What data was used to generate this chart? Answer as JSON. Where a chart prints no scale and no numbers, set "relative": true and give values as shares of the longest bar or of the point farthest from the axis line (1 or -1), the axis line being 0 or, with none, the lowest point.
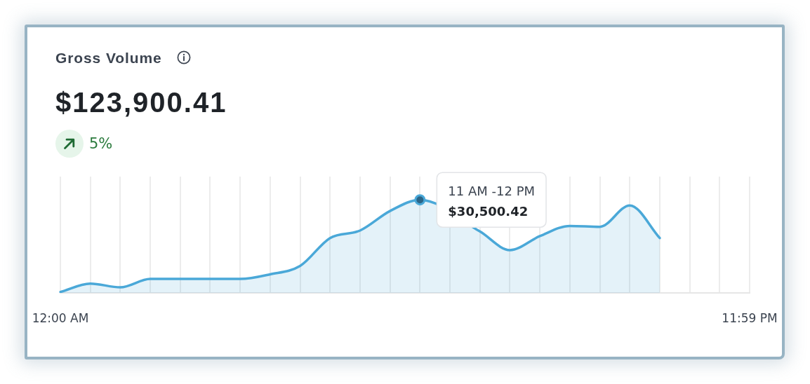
{
  "chart_data": {
    "type": "area",
    "title": "Gross Volume",
    "subtitle": "$123,900.41",
    "annotations": [
      "5%",
      "11 AM -12 PM",
      "$30,500.42"
    ],
    "categories": [
      "12:00 AM",
      null,
      null,
      null,
      null,
      null,
      null,
      null,
      null,
      null,
      null,
      null,
      null,
      null,
      null,
      null,
      null,
      null,
      null,
      null,
      null,
      null,
      null,
      "11:59 PM"
    ],
    "series": [
      {
        "color": "#4aa8d8",
        "values": [
          0.01,
          0.1,
          0.06,
          0.15,
          0.15,
          0.15,
          0.15,
          0.2,
          0.29,
          0.59,
          0.67,
          0.88,
          1,
          null,
          0.66,
          0.46,
          0.61,
          0.72,
          0.71,
          0.94,
          0.59,
          null,
          null,
          null
        ]
      },
      {
        "type": "scatter",
        "color": "#2b6587",
        "marker": "circle",
        "values": [
          null,
          null,
          null,
          null,
          null,
          null,
          null,
          null,
          null,
          null,
          null,
          null,
          1,
          null,
          null,
          null,
          null,
          null,
          null,
          null,
          null,
          null,
          null,
          null
        ]
      }
    ],
    "relative": true,
    "grid": "x"
  }
}
